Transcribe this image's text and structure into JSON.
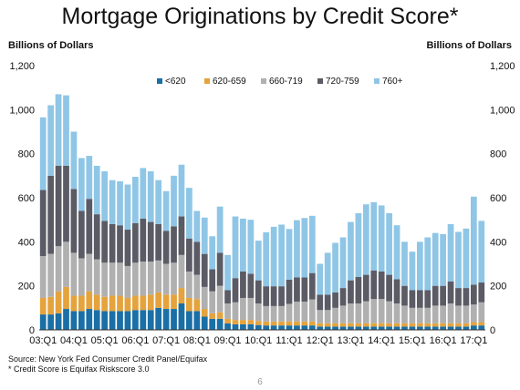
{
  "chart_data": {
    "type": "bar",
    "stacked": true,
    "title": "Mortgage Originations by Credit Score*",
    "ylabel_left": "Billions of Dollars",
    "ylabel_right": "Billions of Dollars",
    "ylim": [
      0,
      1200
    ],
    "yticks": [
      "0",
      "200",
      "400",
      "600",
      "800",
      "1,000",
      "1,200"
    ],
    "legend_position": "top-center",
    "grid": false,
    "x_tick_labels": [
      "03:Q1",
      "04:Q1",
      "05:Q1",
      "06:Q1",
      "07:Q1",
      "08:Q1",
      "09:Q1",
      "10:Q1",
      "11:Q1",
      "12:Q1",
      "13:Q1",
      "14:Q1",
      "15:Q1",
      "16:Q1",
      "17:Q1"
    ],
    "categories": [
      "03:Q1",
      "03:Q2",
      "03:Q3",
      "03:Q4",
      "04:Q1",
      "04:Q2",
      "04:Q3",
      "04:Q4",
      "05:Q1",
      "05:Q2",
      "05:Q3",
      "05:Q4",
      "06:Q1",
      "06:Q2",
      "06:Q3",
      "06:Q4",
      "07:Q1",
      "07:Q2",
      "07:Q3",
      "07:Q4",
      "08:Q1",
      "08:Q2",
      "08:Q3",
      "08:Q4",
      "09:Q1",
      "09:Q2",
      "09:Q3",
      "09:Q4",
      "10:Q1",
      "10:Q2",
      "10:Q3",
      "10:Q4",
      "11:Q1",
      "11:Q2",
      "11:Q3",
      "11:Q4",
      "12:Q1",
      "12:Q2",
      "12:Q3",
      "12:Q4",
      "13:Q1",
      "13:Q2",
      "13:Q3",
      "13:Q4",
      "14:Q1",
      "14:Q2",
      "14:Q3",
      "14:Q4",
      "15:Q1",
      "15:Q2",
      "15:Q3",
      "15:Q4",
      "16:Q1",
      "16:Q2",
      "16:Q3",
      "16:Q4",
      "17:Q1",
      "17:Q2"
    ],
    "series": [
      {
        "name": "<620",
        "color": "#1a6fa6",
        "values": [
          70,
          70,
          75,
          95,
          85,
          85,
          95,
          90,
          85,
          85,
          85,
          85,
          90,
          90,
          90,
          100,
          95,
          95,
          120,
          85,
          85,
          60,
          50,
          50,
          30,
          25,
          25,
          25,
          22,
          20,
          20,
          20,
          20,
          20,
          20,
          20,
          15,
          15,
          15,
          15,
          15,
          15,
          15,
          15,
          15,
          15,
          15,
          15,
          15,
          15,
          15,
          15,
          15,
          15,
          15,
          15,
          20,
          20
        ]
      },
      {
        "name": "620-659",
        "color": "#e5a33d",
        "values": [
          75,
          80,
          100,
          100,
          70,
          70,
          80,
          70,
          65,
          70,
          70,
          60,
          65,
          65,
          70,
          70,
          65,
          65,
          70,
          60,
          55,
          35,
          25,
          30,
          20,
          20,
          20,
          20,
          18,
          18,
          18,
          18,
          18,
          18,
          18,
          18,
          15,
          15,
          15,
          15,
          15,
          15,
          15,
          15,
          15,
          15,
          15,
          15,
          15,
          15,
          15,
          15,
          15,
          15,
          15,
          15,
          15,
          15
        ]
      },
      {
        "name": "660-719",
        "color": "#b0b0b0",
        "values": [
          190,
          195,
          205,
          205,
          195,
          170,
          170,
          160,
          155,
          150,
          150,
          145,
          150,
          155,
          150,
          145,
          140,
          145,
          150,
          120,
          110,
          100,
          100,
          120,
          70,
          80,
          100,
          100,
          80,
          70,
          70,
          70,
          80,
          90,
          90,
          100,
          60,
          60,
          70,
          80,
          90,
          90,
          100,
          110,
          110,
          100,
          90,
          80,
          70,
          70,
          70,
          80,
          80,
          90,
          80,
          80,
          80,
          90
        ]
      },
      {
        "name": "720-759",
        "color": "#5b5b66",
        "values": [
          300,
          355,
          365,
          345,
          290,
          215,
          250,
          205,
          190,
          175,
          170,
          165,
          180,
          195,
          180,
          165,
          150,
          165,
          175,
          150,
          150,
          150,
          100,
          150,
          60,
          110,
          120,
          110,
          105,
          90,
          90,
          90,
          110,
          110,
          110,
          120,
          70,
          70,
          70,
          80,
          105,
          120,
          120,
          130,
          125,
          120,
          110,
          90,
          80,
          80,
          80,
          90,
          90,
          100,
          80,
          80,
          90,
          90
        ]
      },
      {
        "name": "760+",
        "color": "#8fc6e6",
        "values": [
          330,
          320,
          325,
          320,
          260,
          240,
          195,
          220,
          225,
          200,
          200,
          205,
          210,
          230,
          230,
          200,
          180,
          230,
          235,
          230,
          140,
          165,
          150,
          210,
          160,
          280,
          240,
          245,
          180,
          245,
          270,
          280,
          230,
          260,
          270,
          260,
          140,
          190,
          225,
          230,
          265,
          290,
          320,
          310,
          300,
          280,
          245,
          200,
          175,
          220,
          240,
          240,
          235,
          260,
          255,
          270,
          400,
          280
        ]
      }
    ]
  }
}
